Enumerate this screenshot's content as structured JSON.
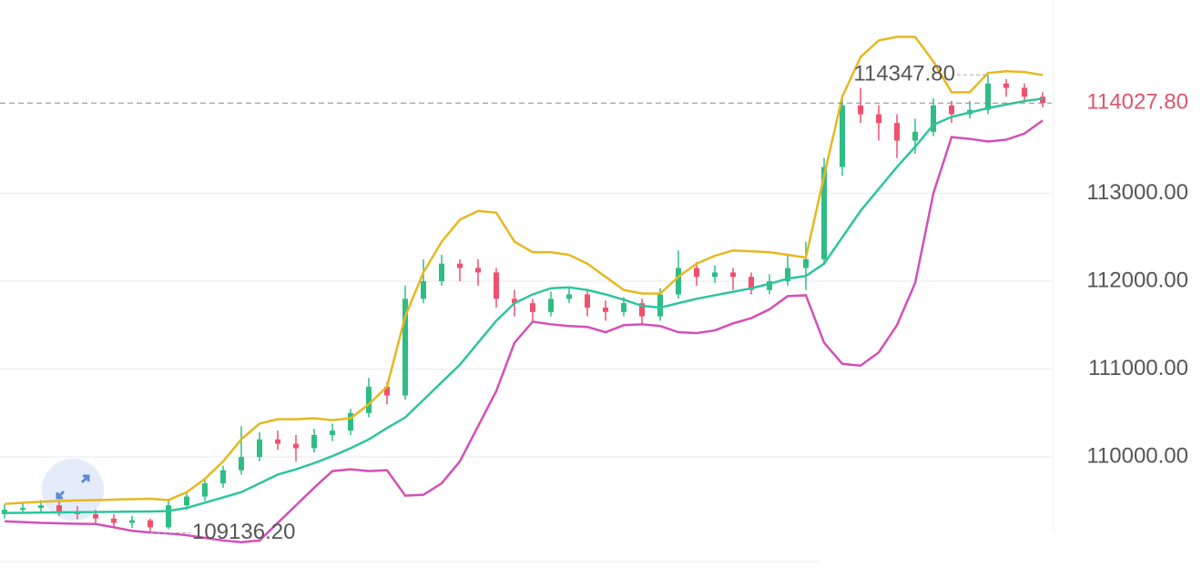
{
  "chart_data": {
    "type": "candlestick",
    "up_color": "#2ebd85",
    "down_color": "#f0506e",
    "grid": true,
    "ylim": [
      108800,
      115200
    ],
    "yticks": [
      {
        "value": 113000,
        "label": "113000.00"
      },
      {
        "value": 112000,
        "label": "112000.00"
      },
      {
        "value": 111000,
        "label": "111000.00"
      },
      {
        "value": 110000,
        "label": "110000.00"
      }
    ],
    "last_price": {
      "value": 114027.8,
      "label": "114027.80",
      "color": "#e0556a"
    },
    "annotations": [
      {
        "value": 114347.8,
        "label": "114347.80"
      },
      {
        "value": 109136.2,
        "label": "109136.20"
      }
    ],
    "candles": {
      "open": [
        109350,
        109400,
        109420,
        109450,
        109380,
        109350,
        109300,
        109250,
        109280,
        109200,
        109450,
        109550,
        109700,
        109850,
        110000,
        110200,
        110150,
        110100,
        110250,
        110300,
        110500,
        110800,
        110700,
        111800,
        112000,
        112200,
        112150,
        112100,
        111800,
        111750,
        111650,
        111800,
        111850,
        111700,
        111650,
        111750,
        111600,
        111850,
        112150,
        112050,
        112100,
        112050,
        111900,
        112000,
        112150,
        112250,
        113300,
        114000,
        113900,
        113800,
        113600,
        113700,
        114000,
        113900,
        113950,
        114250,
        114200,
        114100
      ],
      "high": [
        109460,
        109480,
        109510,
        109500,
        109440,
        109400,
        109350,
        109330,
        109300,
        109500,
        109600,
        109760,
        109900,
        110350,
        110280,
        110300,
        110250,
        110320,
        110380,
        110550,
        110900,
        110850,
        111950,
        112250,
        112300,
        112250,
        112250,
        112150,
        111900,
        111800,
        111880,
        111920,
        111900,
        111780,
        111820,
        111800,
        111920,
        112350,
        112220,
        112180,
        112150,
        112100,
        112080,
        112300,
        112450,
        113400,
        114100,
        114200,
        114000,
        113900,
        113850,
        114080,
        114050,
        114050,
        114347.8,
        114300,
        114250,
        114150
      ],
      "low": [
        109300,
        109350,
        109370,
        109330,
        109290,
        109250,
        109200,
        109190,
        109136.2,
        109180,
        109400,
        109500,
        109650,
        109800,
        109950,
        110080,
        109950,
        110050,
        110180,
        110250,
        110450,
        110600,
        110650,
        111750,
        111950,
        112000,
        111950,
        111700,
        111600,
        111550,
        111600,
        111750,
        111600,
        111550,
        111600,
        111520,
        111550,
        111800,
        111950,
        111980,
        111900,
        111850,
        111850,
        111950,
        111900,
        112200,
        113200,
        113800,
        113600,
        113400,
        113450,
        113650,
        113800,
        113850,
        113900,
        114100,
        114050,
        113980
      ],
      "close": [
        109400,
        109420,
        109450,
        109380,
        109350,
        109300,
        109250,
        109280,
        109200,
        109450,
        109550,
        109700,
        109850,
        110000,
        110200,
        110150,
        110100,
        110250,
        110300,
        110500,
        110800,
        110700,
        111800,
        112000,
        112200,
        112150,
        112100,
        111800,
        111750,
        111650,
        111800,
        111850,
        111700,
        111650,
        111750,
        111600,
        111850,
        112150,
        112050,
        112100,
        112050,
        111900,
        112000,
        112150,
        112250,
        113300,
        114000,
        113900,
        113800,
        113600,
        113700,
        114000,
        113900,
        113950,
        114250,
        114200,
        114100,
        114027.8
      ]
    },
    "series": [
      {
        "color": "#e6b820",
        "values": [
          109466,
          109480,
          109490,
          109500,
          109505,
          109510,
          109515,
          109520,
          109525,
          109510,
          109600,
          109750,
          109950,
          110200,
          110380,
          110430,
          110430,
          110440,
          110420,
          110440,
          110600,
          110800,
          111600,
          112100,
          112450,
          112700,
          112800,
          112780,
          112450,
          112330,
          112330,
          112300,
          112200,
          112050,
          111900,
          111860,
          111860,
          112050,
          112200,
          112290,
          112350,
          112340,
          112330,
          112300,
          112270,
          113200,
          114100,
          114550,
          114740,
          114780,
          114780,
          114500,
          114150,
          114150,
          114370,
          114390,
          114380,
          114347
        ]
      },
      {
        "color": "#2ec4a0",
        "values": [
          109363,
          109365,
          109368,
          109370,
          109372,
          109374,
          109376,
          109378,
          109380,
          109385,
          109420,
          109480,
          109540,
          109600,
          109700,
          109800,
          109860,
          109930,
          110010,
          110100,
          110200,
          110330,
          110450,
          110650,
          110850,
          111050,
          111300,
          111550,
          111750,
          111850,
          111920,
          111930,
          111900,
          111850,
          111790,
          111720,
          111700,
          111750,
          111800,
          111840,
          111880,
          111920,
          111970,
          112030,
          112060,
          112200,
          112500,
          112800,
          113050,
          113300,
          113530,
          113780,
          113870,
          113920,
          113970,
          114010,
          114050,
          114078
        ]
      },
      {
        "color": "#d44fb8",
        "values": [
          109269,
          109260,
          109250,
          109245,
          109240,
          109237,
          109200,
          109160,
          109140,
          109130,
          109110,
          109080,
          109050,
          109031,
          109050,
          109250,
          109450,
          109650,
          109840,
          109860,
          109840,
          109850,
          109560,
          109570,
          109700,
          109950,
          110350,
          110750,
          111300,
          111540,
          111510,
          111490,
          111480,
          111420,
          111500,
          111510,
          111490,
          111420,
          111410,
          111440,
          111520,
          111580,
          111680,
          111830,
          111840,
          111300,
          111060,
          111040,
          111190,
          111500,
          111980,
          113000,
          113640,
          113620,
          113590,
          113610,
          113680,
          113829
        ]
      }
    ]
  }
}
